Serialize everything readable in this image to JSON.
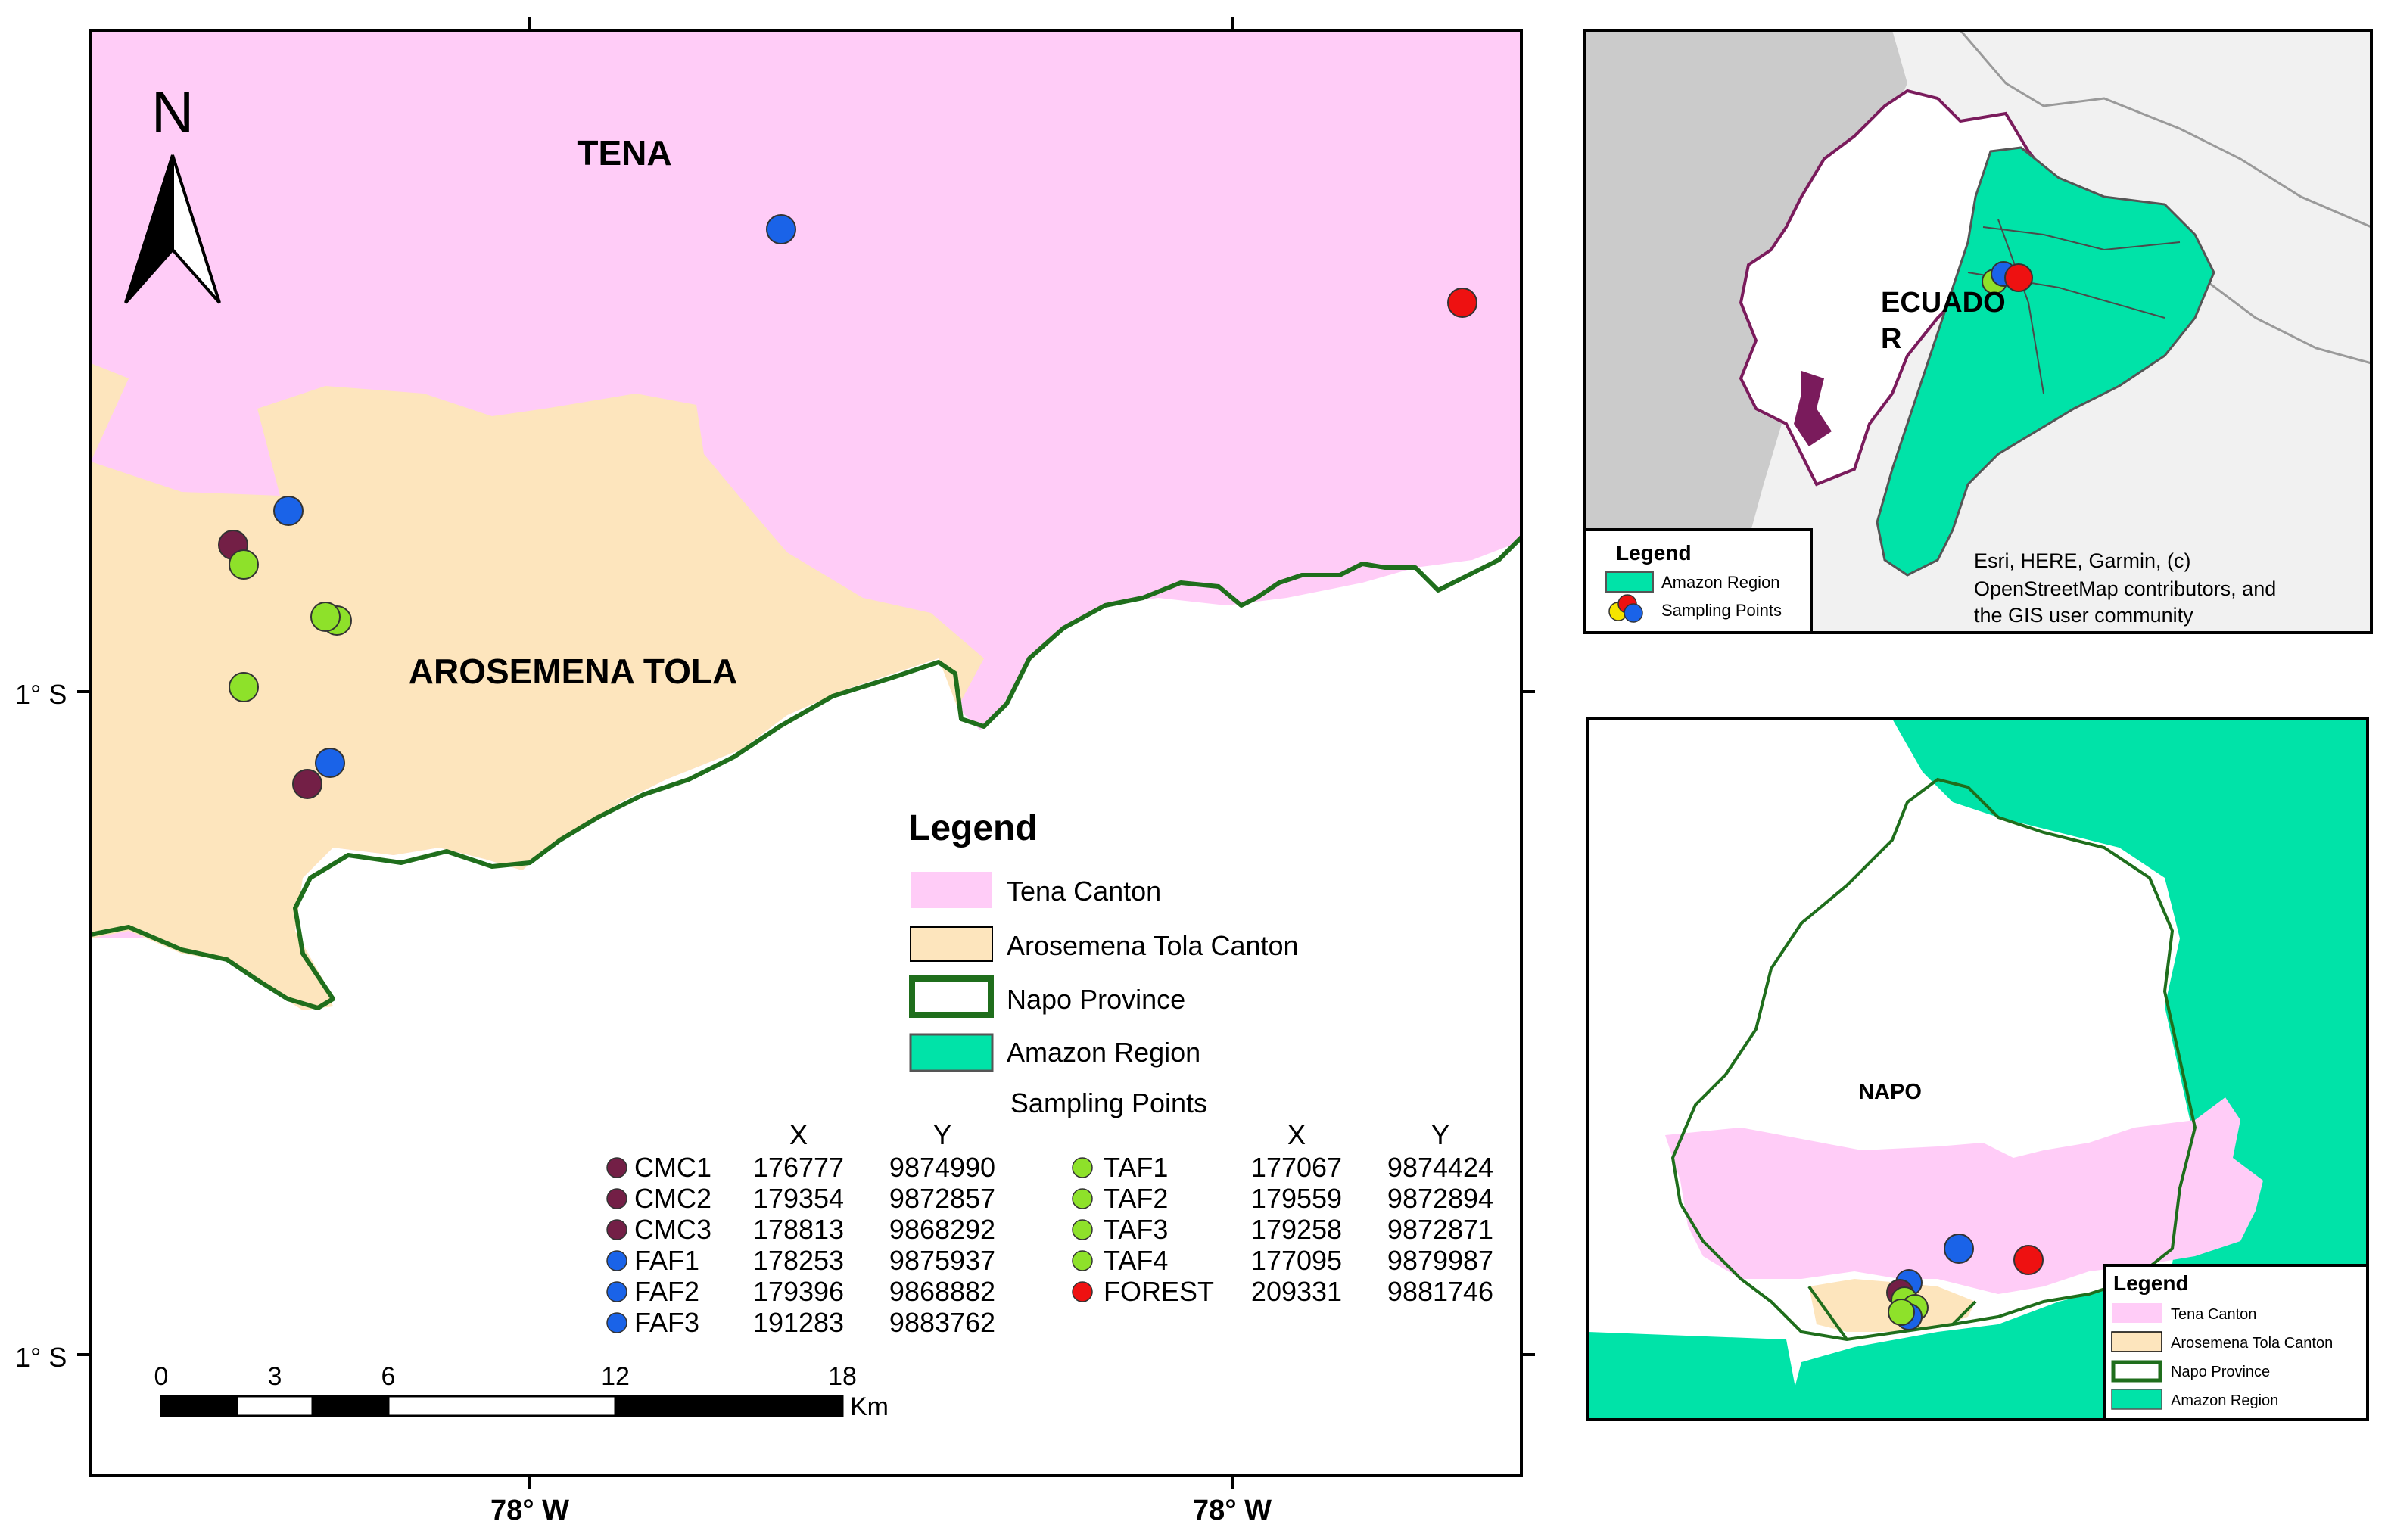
{
  "main_map": {
    "labels": {
      "tena": "TENA",
      "arosemena": "AROSEMENA TOLA"
    },
    "north_arrow": "N",
    "lat_labels": [
      "1° S",
      "1° S"
    ],
    "lon_labels": [
      "78° W",
      "78° W"
    ],
    "scale_bar": {
      "ticks": [
        "0",
        "3",
        "6",
        "12",
        "18"
      ],
      "unit": "Km"
    },
    "colors": {
      "tena": "#ffccf7",
      "arosemena": "#fde5bd",
      "napo_border": "#1f6e1c",
      "amazon": "#00e3a8"
    }
  },
  "legend": {
    "title": "Legend",
    "items": [
      "Tena Canton",
      "Arosemena Tola Canton",
      "Napo Province",
      "Amazon Region"
    ],
    "sampling_title": "Sampling Points",
    "col_x": "X",
    "col_y": "Y",
    "points_left": [
      {
        "name": "CMC1",
        "x": "176777",
        "y": "9874990",
        "color": "#731f46"
      },
      {
        "name": "CMC2",
        "x": "179354",
        "y": "9872857",
        "color": "#731f46"
      },
      {
        "name": "CMC3",
        "x": "178813",
        "y": "9868292",
        "color": "#731f46"
      },
      {
        "name": "FAF1",
        "x": "178253",
        "y": "9875937",
        "color": "#1a63e8"
      },
      {
        "name": "FAF2",
        "x": "179396",
        "y": "9868882",
        "color": "#1a63e8"
      },
      {
        "name": "FAF3",
        "x": "191283",
        "y": "9883762",
        "color": "#1a63e8"
      }
    ],
    "points_right": [
      {
        "name": "TAF1",
        "x": "177067",
        "y": "9874424",
        "color": "#8ee12a"
      },
      {
        "name": "TAF2",
        "x": "179559",
        "y": "9872894",
        "color": "#8ee12a"
      },
      {
        "name": "TAF3",
        "x": "179258",
        "y": "9872871",
        "color": "#8ee12a"
      },
      {
        "name": "TAF4",
        "x": "177095",
        "y": "9879987",
        "color": "#8ee12a"
      },
      {
        "name": "FOREST",
        "x": "209331",
        "y": "9881746",
        "color": "#ee1111"
      }
    ]
  },
  "inset_ecuador": {
    "label": "ECUADO",
    "label_wrap": "R",
    "legend_title": "Legend",
    "legend_items": [
      "Amazon Region",
      "Sampling Points"
    ],
    "attribution": [
      "Esri, HERE, Garmin, (c)",
      "OpenStreetMap contributors, and",
      "the GIS user community"
    ]
  },
  "inset_napo": {
    "label": "NAPO",
    "legend_title": "Legend",
    "legend_items": [
      "Tena Canton",
      "Arosemena Tola Canton",
      "Napo Province",
      "Amazon Region"
    ]
  }
}
